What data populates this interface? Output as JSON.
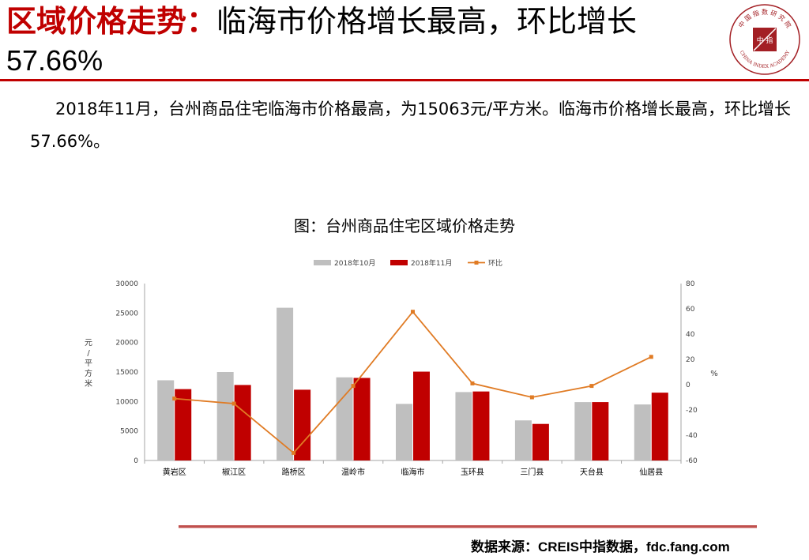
{
  "header": {
    "title_emphasis": "区域价格走势：",
    "title_rest": "临海市价格增长最高，环比增长",
    "title_line2": "57.66%"
  },
  "logo": {
    "top_text": "中 国 指 数 研 究 院",
    "bottom_text": "CHINA INDEX ACADEMY",
    "center_text": "中 指"
  },
  "summary": "2018年11月，台州商品住宅临海市价格最高，为15063元/平方米。临海市价格增长最高，环比增长57.66%。",
  "chart_title": "图：台州商品住宅区域价格走势",
  "footer": {
    "source": "数据来源：CREIS中指数据，fdc.fang.com"
  },
  "colors": {
    "accent": "#c00000",
    "oct": "#bfbfbf",
    "nov": "#c00000",
    "mom": "#e07b24"
  },
  "chart_data": {
    "type": "bar",
    "categories": [
      "黄岩区",
      "椒江区",
      "路桥区",
      "温岭市",
      "临海市",
      "玉环县",
      "三门县",
      "天台县",
      "仙居县"
    ],
    "series": [
      {
        "name": "2018年10月",
        "type": "bar",
        "axis": "left",
        "values": [
          13600,
          15000,
          25900,
          14100,
          9600,
          11600,
          6800,
          9900,
          9500
        ]
      },
      {
        "name": "2018年11月",
        "type": "bar",
        "axis": "left",
        "values": [
          12100,
          12800,
          12000,
          14000,
          15063,
          11700,
          6200,
          9900,
          11500
        ]
      },
      {
        "name": "环比",
        "type": "line",
        "axis": "right",
        "values": [
          -11,
          -15,
          -54,
          -1,
          57.66,
          1,
          -10,
          -1,
          22
        ]
      }
    ],
    "ylabel": "元/平方米",
    "y2label": "%",
    "ylim": [
      0,
      30000
    ],
    "yticks": [
      0,
      5000,
      10000,
      15000,
      20000,
      25000,
      30000
    ],
    "y2lim": [
      -60,
      80
    ],
    "y2ticks": [
      -60,
      -40,
      -20,
      0,
      20,
      40,
      60,
      80
    ],
    "legend_position": "top",
    "grid": false
  }
}
